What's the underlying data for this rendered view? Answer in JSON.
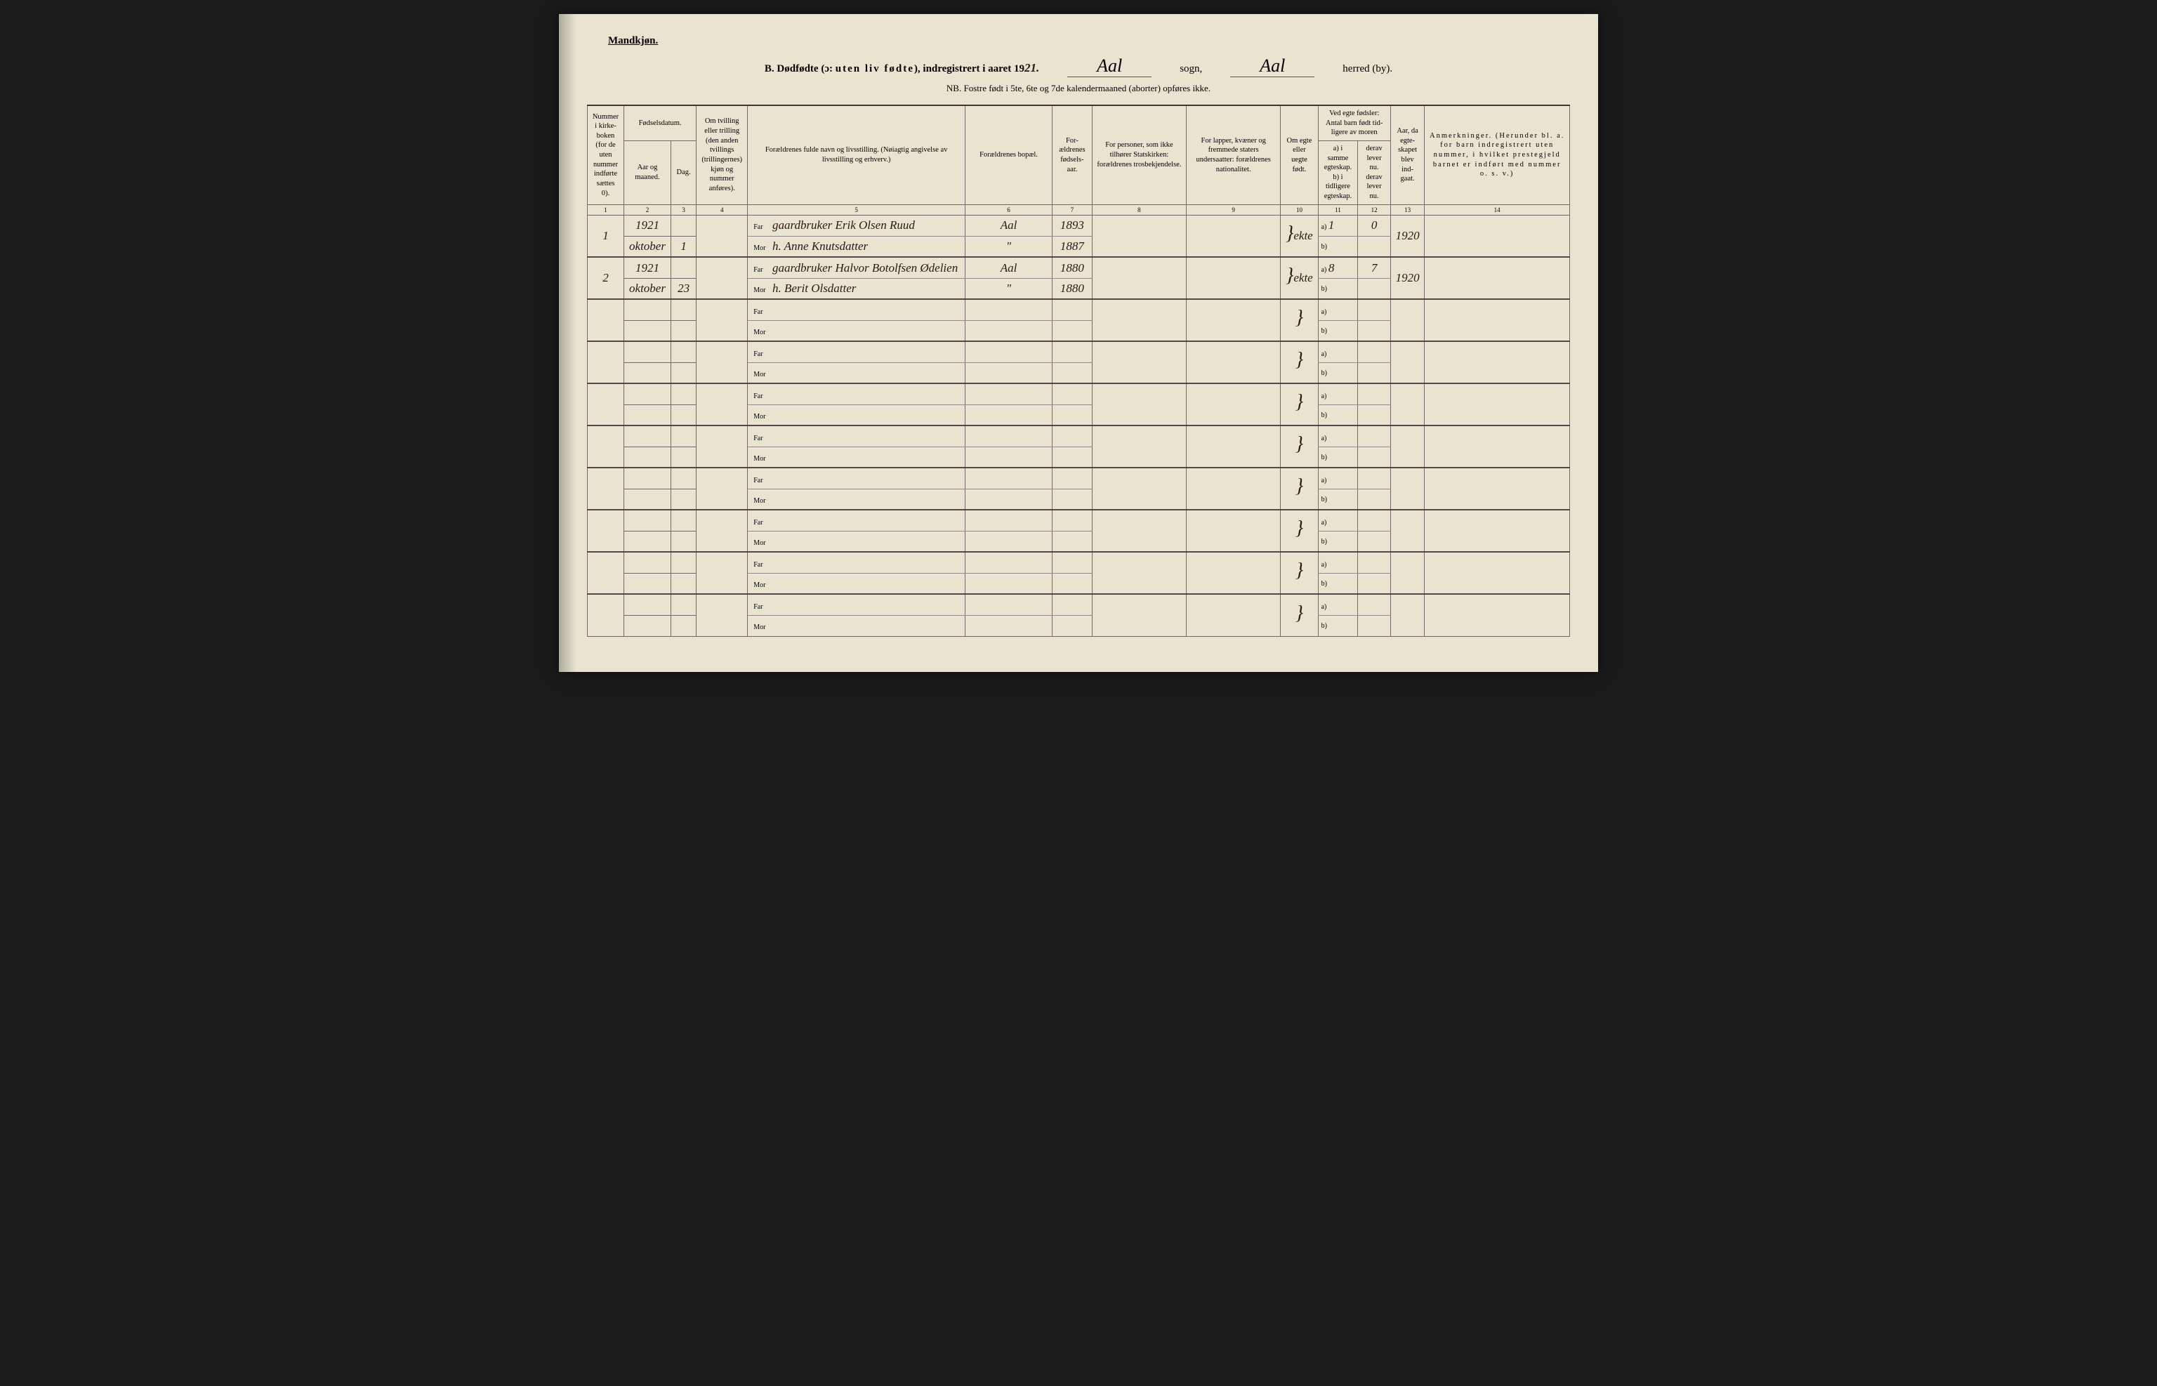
{
  "page": {
    "background_color": "#e8e4d0",
    "border_color": "#766",
    "heavy_border_color": "#433",
    "text_color": "#2a1810"
  },
  "header": {
    "gender": "Mandkjøn.",
    "section_letter": "B.",
    "title_main": "Dødfødte (ɔ: uten liv fødte), indregistrert i aaret 19",
    "year_suffix": "21.",
    "sogn_value": "Aal",
    "sogn_label": "sogn,",
    "herred_value": "Aal",
    "herred_label": "herred (by).",
    "nb_text": "NB.  Fostre født i 5te, 6te og 7de kalendermaaned (aborter) opføres ikke."
  },
  "columns": {
    "c1": "Nummer i kirke-boken (for de uten nummer indførte sættes 0).",
    "c2_top": "Fødselsdatum.",
    "c2a": "Aar og maaned.",
    "c2b": "Dag.",
    "c3": "Om tvilling eller trilling (den anden tvillings (trillingernes) kjøn og nummer anføres).",
    "c4": "Forældrenes fulde navn og livsstilling. (Nøiagtig angivelse av livsstilling og erhverv.)",
    "c5": "Forældrenes bopæl.",
    "c6": "For-ældrenes fødsels-aar.",
    "c7": "For personer, som ikke tilhører Statskirken: forældrenes trosbekjendelse.",
    "c8": "For lapper, kvæner og fremmede staters undersaatter: forældrenes nationalitet.",
    "c9": "Om egte eller uegte født.",
    "c10_top": "Ved egte fødsler: Antal barn født tid-ligere av moren",
    "c10a": "a) i samme egteskap.",
    "c10b": "derav lever nu.",
    "c10c": "b) i tidligere egteskap.",
    "c10d": "derav lever nu.",
    "c11": "Aar, da egte-skapet blev ind-gaat.",
    "c12": "Anmerkninger. (Herunder bl. a. for barn indregistrert uten nummer, i hvilket prestegjeld barnet er indført med nummer o. s. v.)",
    "far_label": "Far",
    "mor_label": "Mor",
    "a_label": "a)",
    "b_label": "b)"
  },
  "colnums": [
    "1",
    "2",
    "3",
    "4",
    "5",
    "6",
    "7",
    "8",
    "9",
    "10",
    "11",
    "12",
    "13",
    "14"
  ],
  "rows": [
    {
      "num": "1",
      "year": "1921",
      "month": "oktober",
      "day": "1",
      "far": "gaardbruker Erik Olsen Ruud",
      "mor": "h. Anne Knutsdatter",
      "bopel_far": "Aal",
      "bopel_mor": "\"",
      "faar_far": "1893",
      "faar_mor": "1887",
      "egte": "ekte",
      "a_val": "1",
      "a_derav": "0",
      "aar_egt": "1920"
    },
    {
      "num": "2",
      "year": "1921",
      "month": "oktober",
      "day": "23",
      "far": "gaardbruker Halvor Botolfsen Ødelien",
      "mor": "h. Berit Olsdatter",
      "bopel_far": "Aal",
      "bopel_mor": "\"",
      "faar_far": "1880",
      "faar_mor": "1880",
      "egte": "ekte",
      "a_val": "8",
      "a_derav": "7",
      "aar_egt": "1920"
    }
  ],
  "empty_rows": 8
}
